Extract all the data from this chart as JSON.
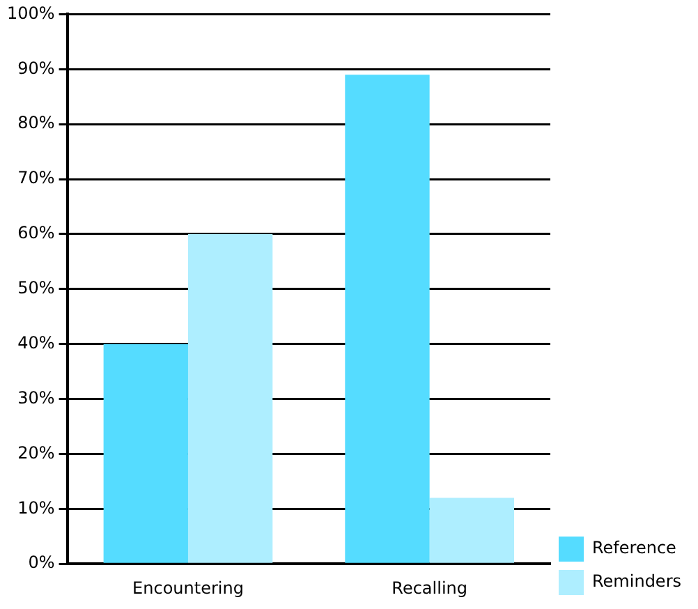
{
  "chart_data": {
    "type": "bar",
    "categories": [
      "Encountering",
      "Recalling"
    ],
    "series": [
      {
        "name": "Reference",
        "color": "#55dcff",
        "values": [
          40,
          89
        ]
      },
      {
        "name": "Reminders",
        "color": "#aeeeff",
        "values": [
          60,
          12
        ]
      }
    ],
    "ylim": [
      0,
      100
    ],
    "yticks": [
      {
        "value": 0,
        "label": "0%"
      },
      {
        "value": 10,
        "label": "10%"
      },
      {
        "value": 20,
        "label": "20%"
      },
      {
        "value": 30,
        "label": "30%"
      },
      {
        "value": 40,
        "label": "40%"
      },
      {
        "value": 50,
        "label": "50%"
      },
      {
        "value": 60,
        "label": "60%"
      },
      {
        "value": 70,
        "label": "70%"
      },
      {
        "value": 80,
        "label": "80%"
      },
      {
        "value": 90,
        "label": "90%"
      },
      {
        "value": 100,
        "label": "100%"
      }
    ],
    "grid": "y",
    "legend": "bottom right"
  }
}
